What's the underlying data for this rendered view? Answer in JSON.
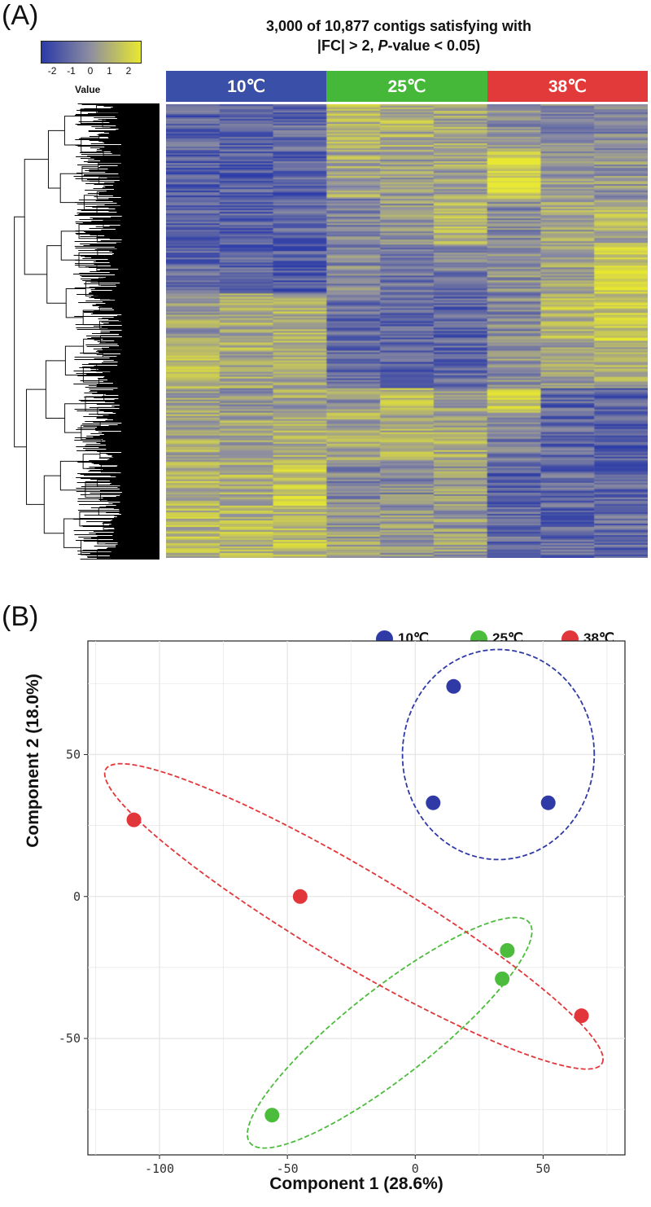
{
  "panel_a_label": "(A)",
  "panel_b_label": "(B)",
  "chart_data": [
    {
      "type": "heatmap",
      "title_line1": "3,000 of 10,877 contigs satisfying with",
      "title_line2_prefix": "|FC| > 2, ",
      "title_line2_italic": "P",
      "title_line2_suffix": "-value < 0.05)",
      "colorbar": {
        "label": "Value",
        "ticks": [
          "-2",
          "-1",
          "0",
          "1",
          "2"
        ],
        "range": [
          -2.6,
          2.6
        ],
        "colors": [
          "#2a3aa8",
          "#8f8fa0",
          "#e8e830"
        ]
      },
      "groups": [
        {
          "name": "10℃",
          "color": "#3a4fa8",
          "samples": 3
        },
        {
          "name": "25℃",
          "color": "#45b83a",
          "samples": 3
        },
        {
          "name": "38℃",
          "color": "#e23a3a",
          "samples": 3
        }
      ],
      "cluster_profiles": [
        [
          -1.4,
          -1.3,
          -1.2,
          1.0,
          0.9,
          0.8,
          0.2,
          -0.3,
          -0.5
        ],
        [
          -1.6,
          -1.5,
          -1.4,
          0.6,
          0.4,
          0.5,
          2.2,
          0.3,
          0.2
        ],
        [
          -1.5,
          -1.4,
          -1.3,
          -0.4,
          0.2,
          1.1,
          -0.2,
          0.6,
          0.9
        ],
        [
          -1.2,
          -1.3,
          -1.5,
          -0.2,
          -0.8,
          -0.6,
          0.1,
          0.4,
          1.9
        ],
        [
          0.5,
          0.9,
          1.1,
          -1.0,
          -1.2,
          -1.3,
          -0.2,
          1.2,
          1.8
        ],
        [
          1.5,
          0.8,
          0.9,
          -1.1,
          -1.3,
          -1.2,
          0.1,
          0.3,
          0.8
        ],
        [
          0.5,
          0.3,
          0.6,
          0.2,
          1.3,
          0.5,
          1.8,
          -1.2,
          -1.4
        ],
        [
          0.8,
          0.7,
          1.0,
          0.7,
          0.9,
          0.8,
          -0.5,
          -1.2,
          -1.5
        ],
        [
          1.1,
          1.0,
          1.8,
          -0.3,
          -0.2,
          0.3,
          -1.3,
          -1.2,
          -1.4
        ],
        [
          1.2,
          1.1,
          1.3,
          0.3,
          0.2,
          0.4,
          -1.1,
          -1.3,
          -1.2
        ]
      ],
      "cluster_weights": [
        2,
        2,
        2,
        2,
        2,
        2,
        1,
        2,
        2,
        2
      ]
    },
    {
      "type": "scatter",
      "xlabel": "Component 1 (28.6%)",
      "ylabel": "Component 2 (18.0%)",
      "xlim": [
        -128,
        82
      ],
      "ylim": [
        -91,
        90
      ],
      "xticks": [
        -100,
        -50,
        0,
        50
      ],
      "yticks": [
        -50,
        0,
        50
      ],
      "grid": true,
      "legend_position": "top-right",
      "series": [
        {
          "name": "10℃",
          "color": "#2f3aa6",
          "points": [
            [
              15,
              74
            ],
            [
              7,
              33
            ],
            [
              52,
              33
            ]
          ],
          "ellipse": {
            "cx": 32.5,
            "cy": 50,
            "rx": 37.5,
            "ry": 37,
            "angle": 0
          }
        },
        {
          "name": "25℃",
          "color": "#4cbc3c",
          "points": [
            [
              36,
              -19
            ],
            [
              34,
              -29
            ],
            [
              -56,
              -77
            ]
          ],
          "ellipse": {
            "cx": -10,
            "cy": -48,
            "rx": 67,
            "ry": 16,
            "angle": 35
          }
        },
        {
          "name": "38℃",
          "color": "#e2373a",
          "points": [
            [
              -110,
              27
            ],
            [
              -45,
              0
            ],
            [
              65,
              -42
            ]
          ],
          "ellipse": {
            "cx": -24,
            "cy": -7,
            "rx": 110,
            "ry": 17,
            "angle": -28
          }
        }
      ]
    }
  ]
}
